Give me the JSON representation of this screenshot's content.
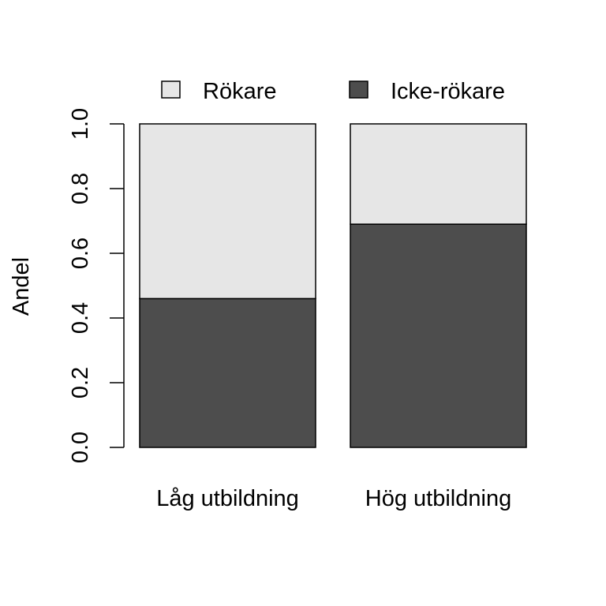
{
  "chart_data": {
    "type": "bar",
    "stacked": true,
    "categories": [
      "Låg utbildning",
      "Hög utbildning"
    ],
    "series": [
      {
        "name": "Icke-rökare",
        "values": [
          0.46,
          0.69
        ],
        "color": "#4d4d4d"
      },
      {
        "name": "Rökare",
        "values": [
          0.54,
          0.31
        ],
        "color": "#e6e6e6"
      }
    ],
    "title": "",
    "xlabel": "",
    "ylabel": "Andel",
    "ylim": [
      0,
      1
    ],
    "yticks": [
      "0.0",
      "0.2",
      "0.4",
      "0.6",
      "0.8",
      "1.0"
    ],
    "grid": false,
    "legend": {
      "placement": "top",
      "entries": [
        {
          "name": "Rökare",
          "color": "#e6e6e6"
        },
        {
          "name": "Icke-rökare",
          "color": "#4d4d4d"
        }
      ]
    }
  }
}
